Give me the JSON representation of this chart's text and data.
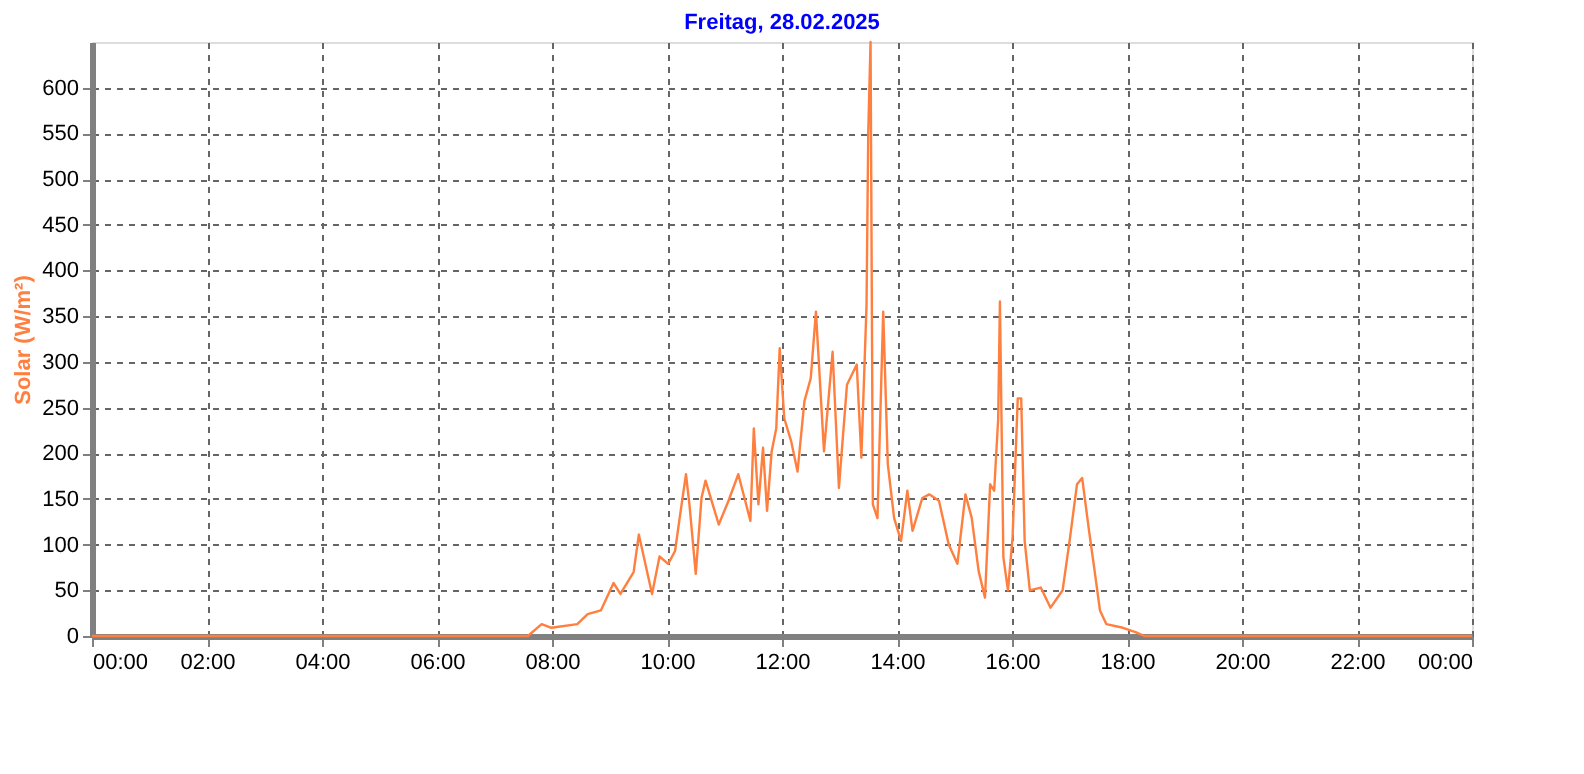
{
  "chart_data": {
    "type": "line",
    "title": "Freitag, 28.02.2025",
    "ylabel": "Solar (W/m²)",
    "x": [
      0,
      7.58,
      7.82,
      7.99,
      8.44,
      8.62,
      8.85,
      9.07,
      9.19,
      9.42,
      9.51,
      9.74,
      9.87,
      10.02,
      10.14,
      10.22,
      10.33,
      10.39,
      10.5,
      10.6,
      10.67,
      10.9,
      11.07,
      11.24,
      11.36,
      11.45,
      11.51,
      11.59,
      11.67,
      11.74,
      11.82,
      11.9,
      11.96,
      12.04,
      12.16,
      12.27,
      12.39,
      12.5,
      12.59,
      12.73,
      12.88,
      12.99,
      13.13,
      13.3,
      13.38,
      13.47,
      13.5,
      13.54,
      13.58,
      13.66,
      13.76,
      13.84,
      13.95,
      14.07,
      14.18,
      14.27,
      14.44,
      14.56,
      14.73,
      14.9,
      15.05,
      15.19,
      15.3,
      15.42,
      15.53,
      15.62,
      15.69,
      15.76,
      15.79,
      15.85,
      15.93,
      16.01,
      16.1,
      16.16,
      16.22,
      16.31,
      16.5,
      16.67,
      16.88,
      17.01,
      17.13,
      17.22,
      17.34,
      17.42,
      17.53,
      17.64,
      17.93,
      18.16,
      18.3,
      24
    ],
    "series": [
      {
        "color": "#ff7f3f",
        "values": [
          0,
          0,
          13,
          9,
          13,
          24,
          28,
          58,
          46,
          70,
          111,
          46,
          87,
          79,
          93,
          129,
          177,
          144,
          68,
          151,
          170,
          122,
          148,
          177,
          148,
          126,
          227,
          144,
          206,
          137,
          202,
          227,
          315,
          238,
          213,
          180,
          257,
          282,
          355,
          202,
          311,
          162,
          275,
          297,
          195,
          362,
          551,
          650,
          144,
          129,
          355,
          188,
          129,
          104,
          159,
          115,
          151,
          155,
          148,
          100,
          79,
          155,
          129,
          71,
          42,
          166,
          159,
          238,
          366,
          86,
          50,
          108,
          260,
          260,
          104,
          50,
          53,
          31,
          50,
          108,
          166,
          173,
          115,
          79,
          28,
          13,
          9,
          4,
          0,
          0
        ]
      }
    ],
    "xlim": [
      0,
      24
    ],
    "xticks": [
      {
        "value": 0,
        "label": "00:00"
      },
      {
        "value": 2,
        "label": "02:00"
      },
      {
        "value": 4,
        "label": "04:00"
      },
      {
        "value": 6,
        "label": "06:00"
      },
      {
        "value": 8,
        "label": "08:00"
      },
      {
        "value": 10,
        "label": "10:00"
      },
      {
        "value": 12,
        "label": "12:00"
      },
      {
        "value": 14,
        "label": "14:00"
      },
      {
        "value": 16,
        "label": "16:00"
      },
      {
        "value": 18,
        "label": "18:00"
      },
      {
        "value": 20,
        "label": "20:00"
      },
      {
        "value": 22,
        "label": "22:00"
      },
      {
        "value": 24,
        "label": "00:00"
      }
    ],
    "ylim": [
      0,
      650
    ],
    "yticks": [
      0,
      50,
      100,
      150,
      200,
      250,
      300,
      350,
      400,
      450,
      500,
      550,
      600
    ],
    "grid": true,
    "marker": "none",
    "line_style": "solid"
  }
}
